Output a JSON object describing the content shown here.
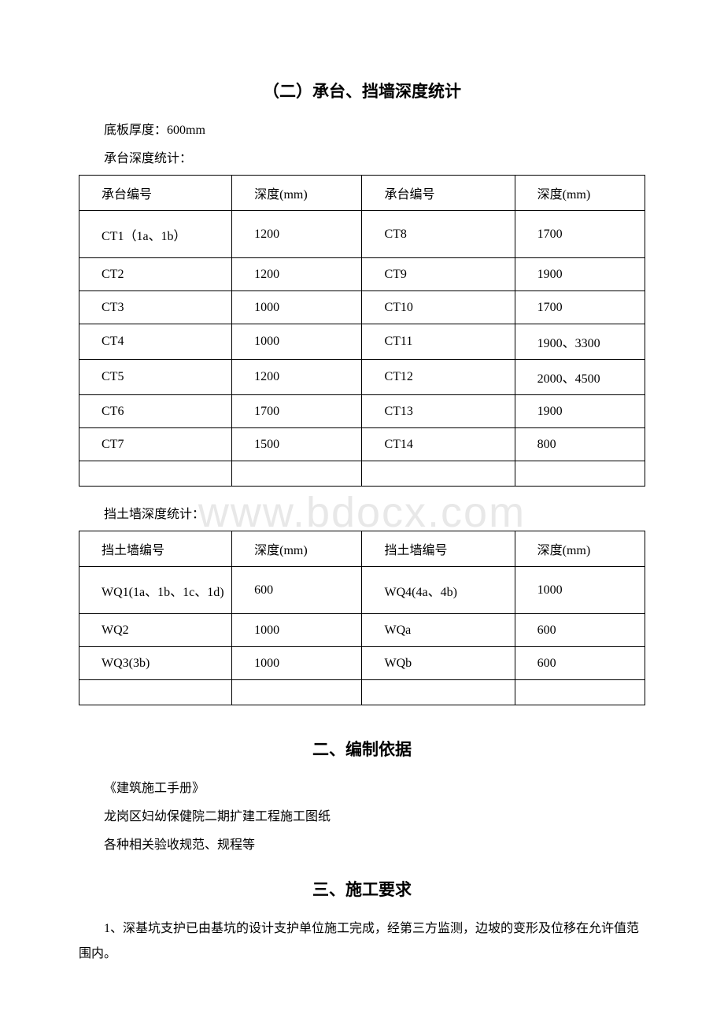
{
  "watermark": "www.bdocx.com",
  "section1": {
    "title": "（二）承台、挡墙深度统计",
    "text1": "底板厚度：600mm",
    "text2": "承台深度统计：",
    "table1": {
      "headers": [
        "承台编号",
        "深度(mm)",
        "承台编号",
        "深度(mm)"
      ],
      "rows": [
        [
          "CT1（1a、1b）",
          "1200",
          "CT8",
          "1700"
        ],
        [
          "CT2",
          "1200",
          "CT9",
          "1900"
        ],
        [
          "CT3",
          "1000",
          "CT10",
          "1700"
        ],
        [
          "CT4",
          "1000",
          "CT11",
          "1900、3300"
        ],
        [
          "CT5",
          "1200",
          "CT12",
          "2000、4500"
        ],
        [
          "CT6",
          "1700",
          "CT13",
          "1900"
        ],
        [
          "CT7",
          "1500",
          "CT14",
          "800"
        ]
      ]
    },
    "text3": "挡土墙深度统计：",
    "table2": {
      "headers": [
        "挡土墙编号",
        "深度(mm)",
        "挡土墙编号",
        "深度(mm)"
      ],
      "rows": [
        [
          "WQ1(1a、1b、1c、1d)",
          "600",
          "WQ4(4a、4b)",
          "1000"
        ],
        [
          "WQ2",
          "1000",
          "WQa",
          "600"
        ],
        [
          "WQ3(3b)",
          "1000",
          "WQb",
          "600"
        ]
      ]
    }
  },
  "section2": {
    "title": "二、编制依据",
    "items": [
      "《建筑施工手册》",
      "龙岗区妇幼保健院二期扩建工程施工图纸",
      "各种相关验收规范、规程等"
    ]
  },
  "section3": {
    "title": "三、施工要求",
    "text1": "1、深基坑支护已由基坑的设计支护单位施工完成，经第三方监测，边坡的变形及位移在允许值范围内。"
  }
}
